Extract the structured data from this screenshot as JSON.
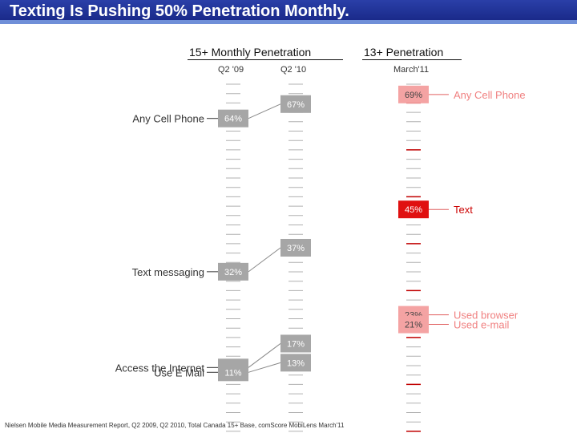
{
  "title": "Texting Is Pushing 50% Penetration Monthly.",
  "header_left": "15+ Monthly Penetration",
  "header_right": "13+ Penetration",
  "col_q2_09": "Q2 '09",
  "col_q2_10": "Q2 '10",
  "col_march_11": "March'11",
  "footnote": "Nielsen Mobile Media Measurement Report, Q2 2009, Q2 2010, Total Canada 15+ Base, comScore MobiLens March'11",
  "colors": {
    "title_bg": "#1f3399",
    "gray_box": "#a6a6a6",
    "pink_box": "#f4a3a3",
    "red_box": "#e01010",
    "pink_label": "#f08080"
  },
  "chart_data": {
    "type": "table",
    "scale_unit": "%",
    "scale_max": 75,
    "columns": [
      {
        "name": "Q2 '09",
        "points": [
          {
            "label": "Any Cell Phone",
            "value": 64,
            "text": "64%"
          },
          {
            "label": "Text messaging",
            "value": 32,
            "text": "32%"
          },
          {
            "label": "Access the Internet",
            "value": 12,
            "text": "12%"
          },
          {
            "label": "Use E Mail",
            "value": 11,
            "text": "11%"
          }
        ]
      },
      {
        "name": "Q2 '10",
        "points": [
          {
            "label": "",
            "value": 67,
            "text": "67%"
          },
          {
            "label": "",
            "value": 37,
            "text": "37%"
          },
          {
            "label": "",
            "value": 17,
            "text": "17%"
          },
          {
            "label": "",
            "value": 13,
            "text": "13%"
          }
        ]
      },
      {
        "name": "March'11",
        "points": [
          {
            "label": "Any Cell Phone",
            "value": 69,
            "text": "69%"
          },
          {
            "label": "Text",
            "value": 45,
            "text": "45%"
          },
          {
            "label": "Used browser",
            "value": 23,
            "text": "23%"
          },
          {
            "label": "Used e-mail",
            "value": 21,
            "text": "21%"
          }
        ]
      }
    ]
  }
}
